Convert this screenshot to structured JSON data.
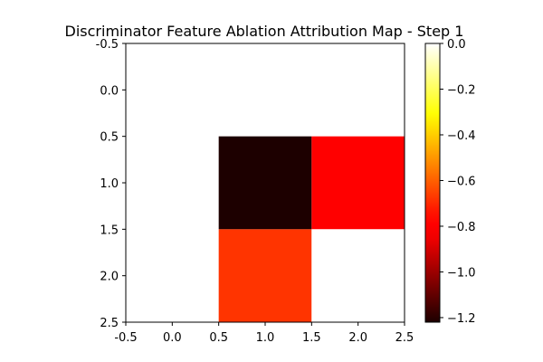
{
  "chart_data": {
    "type": "heatmap",
    "title": "Discriminator Feature Ablation Attribution Map - Step 1",
    "xlabel": "",
    "ylabel": "",
    "colormap": "hot",
    "grid": false,
    "rows": 3,
    "cols": 3,
    "values": [
      [
        0.0,
        0.0,
        0.0
      ],
      [
        0.0,
        -1.22,
        -0.81
      ],
      [
        0.0,
        -0.68,
        0.0
      ]
    ],
    "xlim": [
      -0.5,
      2.5
    ],
    "ylim": [
      2.5,
      -0.5
    ],
    "x_ticks": [
      "-0.5",
      "0.0",
      "0.5",
      "1.0",
      "1.5",
      "2.0",
      "2.5"
    ],
    "x_tick_values": [
      -0.5,
      0.0,
      0.5,
      1.0,
      1.5,
      2.0,
      2.5
    ],
    "y_ticks": [
      "-0.5",
      "0.0",
      "0.5",
      "1.0",
      "1.5",
      "2.0",
      "2.5"
    ],
    "y_tick_values": [
      -0.5,
      0.0,
      0.5,
      1.0,
      1.5,
      2.0,
      2.5
    ],
    "colorbar": {
      "range": [
        -1.22,
        0.0
      ],
      "ticks": [
        "0.0",
        "−0.2",
        "−0.4",
        "−0.6",
        "−0.8",
        "−1.0",
        "−1.2"
      ],
      "tick_values": [
        0.0,
        -0.2,
        -0.4,
        -0.6,
        -0.8,
        -1.0,
        -1.2
      ]
    }
  }
}
